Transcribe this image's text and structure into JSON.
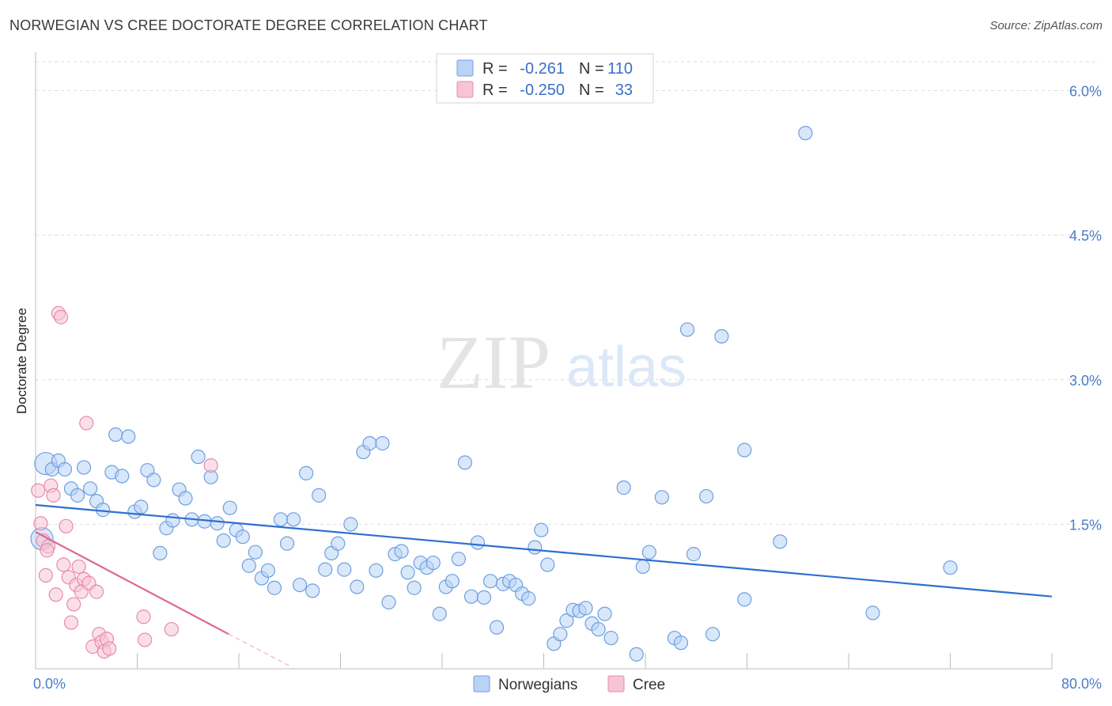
{
  "header": {
    "title": "NORWEGIAN VS CREE DOCTORATE DEGREE CORRELATION CHART",
    "source": "Source: ZipAtlas.com"
  },
  "watermark": {
    "zip": "ZIP",
    "atlas": "atlas"
  },
  "chart_data": {
    "type": "scatter",
    "title": "NORWEGIAN VS CREE DOCTORATE DEGREE CORRELATION CHART",
    "ylabel": "Doctorate Degree",
    "xlabel": "",
    "xlim": [
      0,
      80
    ],
    "ylim": [
      0,
      6.3
    ],
    "x_tick_labels": [
      "0.0%",
      "80.0%"
    ],
    "y_ticks": [
      1.5,
      3.0,
      4.5,
      6.0
    ],
    "y_tick_labels": [
      "1.5%",
      "3.0%",
      "4.5%",
      "6.0%"
    ],
    "grid": true,
    "legend_position": "top-center",
    "colors": {
      "norwegians_fill": "#b8d3f5",
      "norwegians_stroke": "#6f9fe0",
      "norwegians_line": "#2f6fcf",
      "cree_fill": "#f7c4d5",
      "cree_stroke": "#e88aab",
      "cree_line": "#e0678f"
    },
    "stats": [
      {
        "series": "Norwegians",
        "r_label": "R =",
        "r_value": "-0.261",
        "n_label": "N =",
        "n_value": "110"
      },
      {
        "series": "Cree",
        "r_label": "R =",
        "r_value": "-0.250",
        "n_label": "N =",
        "n_value": "33"
      }
    ],
    "series": [
      {
        "name": "Norwegians",
        "trend": {
          "x": [
            0,
            80
          ],
          "y": [
            1.7,
            0.75
          ]
        },
        "points": [
          [
            0.8,
            2.13
          ],
          [
            1.3,
            2.07
          ],
          [
            1.8,
            2.16
          ],
          [
            2.3,
            2.07
          ],
          [
            2.8,
            1.87
          ],
          [
            3.3,
            1.8
          ],
          [
            3.8,
            2.09
          ],
          [
            4.3,
            1.87
          ],
          [
            4.8,
            1.74
          ],
          [
            5.3,
            1.65
          ],
          [
            6.0,
            2.04
          ],
          [
            6.3,
            2.43
          ],
          [
            6.8,
            2.0
          ],
          [
            7.3,
            2.41
          ],
          [
            7.8,
            1.63
          ],
          [
            8.3,
            1.68
          ],
          [
            8.8,
            2.06
          ],
          [
            9.3,
            1.96
          ],
          [
            9.8,
            1.2
          ],
          [
            10.3,
            1.46
          ],
          [
            10.8,
            1.54
          ],
          [
            11.3,
            1.86
          ],
          [
            11.8,
            1.77
          ],
          [
            12.3,
            1.55
          ],
          [
            12.8,
            2.2
          ],
          [
            13.3,
            1.53
          ],
          [
            13.8,
            1.99
          ],
          [
            14.3,
            1.51
          ],
          [
            14.8,
            1.33
          ],
          [
            15.3,
            1.67
          ],
          [
            15.8,
            1.44
          ],
          [
            16.3,
            1.37
          ],
          [
            16.8,
            1.07
          ],
          [
            17.3,
            1.21
          ],
          [
            17.8,
            0.94
          ],
          [
            18.3,
            1.02
          ],
          [
            18.8,
            0.84
          ],
          [
            19.3,
            1.55
          ],
          [
            19.8,
            1.3
          ],
          [
            20.3,
            1.55
          ],
          [
            20.8,
            0.87
          ],
          [
            21.3,
            2.03
          ],
          [
            21.8,
            0.81
          ],
          [
            22.3,
            1.8
          ],
          [
            22.8,
            1.03
          ],
          [
            23.3,
            1.2
          ],
          [
            23.8,
            1.3
          ],
          [
            24.3,
            1.03
          ],
          [
            24.8,
            1.5
          ],
          [
            25.3,
            0.85
          ],
          [
            25.8,
            2.25
          ],
          [
            26.3,
            2.34
          ],
          [
            26.8,
            1.02
          ],
          [
            27.3,
            2.34
          ],
          [
            27.8,
            0.69
          ],
          [
            28.3,
            1.19
          ],
          [
            28.8,
            1.22
          ],
          [
            29.3,
            1.0
          ],
          [
            29.8,
            0.84
          ],
          [
            30.3,
            1.1
          ],
          [
            30.8,
            1.05
          ],
          [
            31.3,
            1.1
          ],
          [
            31.8,
            0.57
          ],
          [
            32.3,
            0.85
          ],
          [
            32.8,
            0.91
          ],
          [
            33.3,
            1.14
          ],
          [
            33.8,
            2.14
          ],
          [
            34.3,
            0.75
          ],
          [
            34.8,
            1.31
          ],
          [
            35.3,
            0.74
          ],
          [
            35.8,
            0.91
          ],
          [
            36.3,
            0.43
          ],
          [
            36.8,
            0.88
          ],
          [
            37.3,
            0.91
          ],
          [
            37.8,
            0.87
          ],
          [
            38.3,
            0.78
          ],
          [
            38.8,
            0.73
          ],
          [
            39.3,
            1.26
          ],
          [
            39.8,
            1.44
          ],
          [
            40.3,
            1.08
          ],
          [
            40.8,
            0.26
          ],
          [
            41.3,
            0.36
          ],
          [
            41.8,
            0.5
          ],
          [
            42.3,
            0.61
          ],
          [
            42.8,
            0.6
          ],
          [
            43.3,
            0.63
          ],
          [
            43.8,
            0.47
          ],
          [
            44.3,
            0.41
          ],
          [
            44.8,
            0.57
          ],
          [
            45.3,
            0.32
          ],
          [
            46.3,
            1.88
          ],
          [
            47.3,
            0.15
          ],
          [
            47.8,
            1.06
          ],
          [
            48.3,
            1.21
          ],
          [
            49.3,
            1.78
          ],
          [
            50.3,
            0.32
          ],
          [
            50.8,
            0.27
          ],
          [
            51.3,
            3.52
          ],
          [
            51.8,
            1.19
          ],
          [
            52.8,
            1.79
          ],
          [
            53.3,
            0.36
          ],
          [
            54.0,
            3.45
          ],
          [
            55.8,
            2.27
          ],
          [
            55.8,
            0.72
          ],
          [
            58.6,
            1.32
          ],
          [
            60.6,
            5.56
          ],
          [
            65.9,
            0.58
          ],
          [
            72.0,
            1.05
          ],
          [
            0.5,
            1.35
          ]
        ]
      },
      {
        "name": "Cree",
        "trend": {
          "x": [
            0,
            15.2
          ],
          "y": [
            1.42,
            0.36
          ]
        },
        "trend_dashed": {
          "x": [
            15.2,
            20
          ],
          "y": [
            0.36,
            0.03
          ]
        },
        "points": [
          [
            0.2,
            1.85
          ],
          [
            0.4,
            1.51
          ],
          [
            0.6,
            1.33
          ],
          [
            0.8,
            0.97
          ],
          [
            1.0,
            1.27
          ],
          [
            1.2,
            1.9
          ],
          [
            1.4,
            1.8
          ],
          [
            1.6,
            0.77
          ],
          [
            1.8,
            3.69
          ],
          [
            2.0,
            3.65
          ],
          [
            2.2,
            1.08
          ],
          [
            2.4,
            1.48
          ],
          [
            2.6,
            0.95
          ],
          [
            2.8,
            0.48
          ],
          [
            3.0,
            0.67
          ],
          [
            3.2,
            0.87
          ],
          [
            3.4,
            1.06
          ],
          [
            3.6,
            0.8
          ],
          [
            3.8,
            0.93
          ],
          [
            4.0,
            2.55
          ],
          [
            4.2,
            0.89
          ],
          [
            4.5,
            0.23
          ],
          [
            4.8,
            0.8
          ],
          [
            5.0,
            0.36
          ],
          [
            5.2,
            0.28
          ],
          [
            5.4,
            0.18
          ],
          [
            5.6,
            0.31
          ],
          [
            5.8,
            0.21
          ],
          [
            8.5,
            0.54
          ],
          [
            8.6,
            0.3
          ],
          [
            10.7,
            0.41
          ],
          [
            13.8,
            2.11
          ],
          [
            0.9,
            1.23
          ]
        ]
      }
    ]
  },
  "bottom_legend": [
    {
      "label": "Norwegians"
    },
    {
      "label": "Cree"
    }
  ]
}
